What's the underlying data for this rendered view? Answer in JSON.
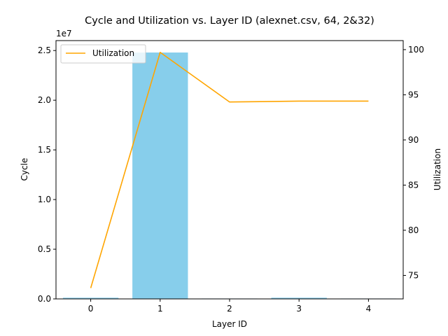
{
  "chart_data": {
    "type": "bar+line",
    "title": "Cycle and Utilization vs. Layer ID (alexnet.csv, 64, 2&32)",
    "xlabel": "Layer ID",
    "categories": [
      "0",
      "1",
      "2",
      "3",
      "4"
    ],
    "x": [
      0,
      1,
      2,
      3,
      4
    ],
    "xticks": [
      "0",
      "1",
      "2",
      "3",
      "4"
    ],
    "left_axis": {
      "label": "Cycle",
      "exponent_label": "1e7",
      "ylim": [
        0,
        2.6
      ],
      "ticks": [
        0.0,
        0.5,
        1.0,
        1.5,
        2.0,
        2.5
      ],
      "tick_labels": [
        "0.0",
        "0.5",
        "1.0",
        "1.5",
        "2.0",
        "2.5"
      ]
    },
    "right_axis": {
      "label": "Utilization",
      "ylim": [
        72.4,
        101
      ],
      "ticks": [
        75,
        80,
        85,
        90,
        95,
        100
      ],
      "tick_labels": [
        "75",
        "80",
        "85",
        "90",
        "95",
        "100"
      ]
    },
    "bars": {
      "color": "#87CEEB",
      "values": [
        0.012,
        2.48,
        0.004,
        0.012,
        0.004
      ]
    },
    "series": [
      {
        "name": "Utilization",
        "color": "#FFA500",
        "axis": "right",
        "values": [
          73.6,
          99.7,
          94.2,
          94.3,
          94.3
        ]
      }
    ],
    "legend": {
      "position": "top-left",
      "entries": [
        "Utilization"
      ]
    }
  }
}
